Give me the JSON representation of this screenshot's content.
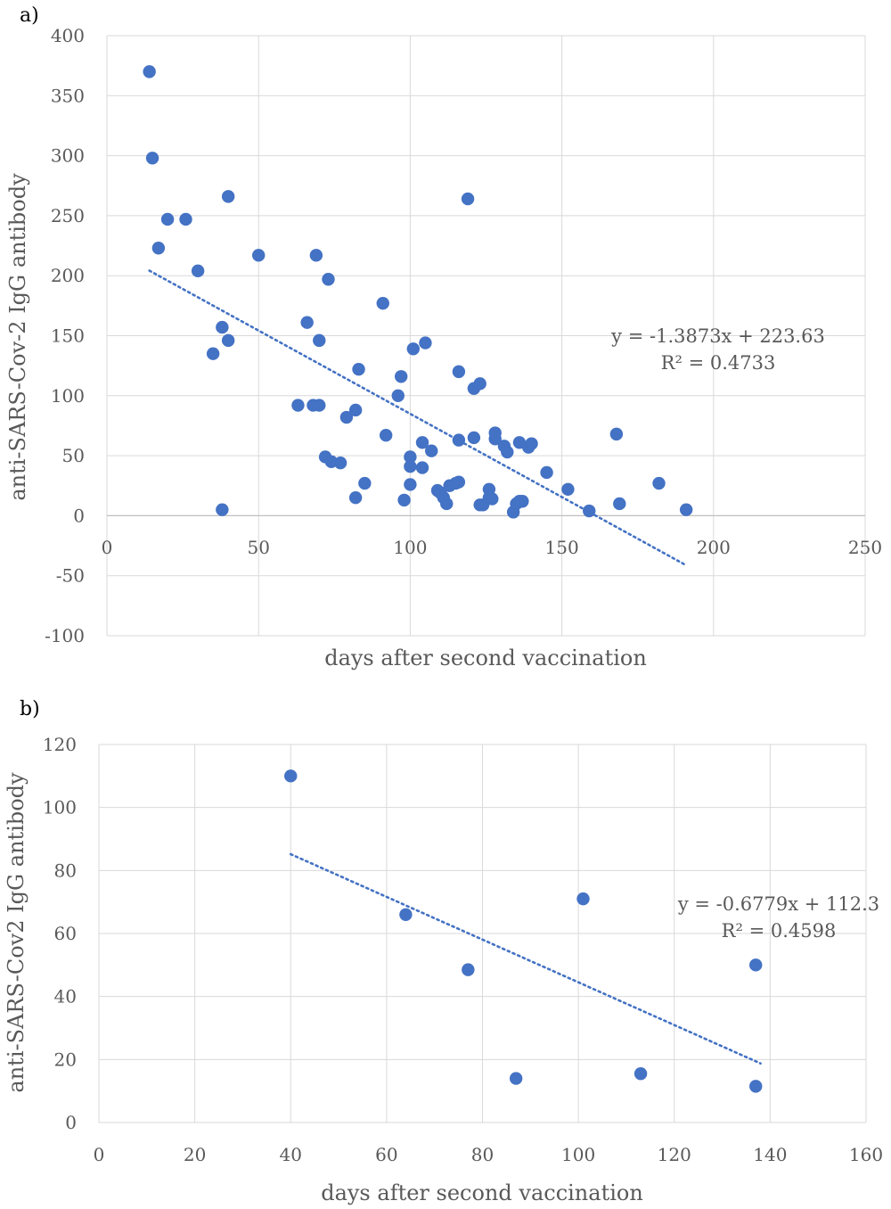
{
  "colors": {
    "marker": "#4472c4",
    "trend": "#4472c4",
    "grid": "#d9d9d9",
    "text": "#595959"
  },
  "chart_data": [
    {
      "type": "scatter",
      "panel_label": "a)",
      "title": "",
      "xlabel": "days after second vaccination",
      "ylabel": "anti-SARS-Cov-2 IgG antibody",
      "xlim": [
        0,
        250
      ],
      "ylim": [
        -100,
        400
      ],
      "xticks": [
        0,
        50,
        100,
        150,
        200,
        250
      ],
      "yticks": [
        -100,
        -50,
        0,
        50,
        100,
        150,
        200,
        250,
        300,
        350,
        400
      ],
      "series": [
        {
          "name": "IgG",
          "x": [
            14,
            15,
            17,
            20,
            26,
            30,
            35,
            38,
            38,
            40,
            40,
            50,
            63,
            66,
            68,
            69,
            70,
            70,
            72,
            73,
            74,
            77,
            79,
            82,
            82,
            83,
            85,
            91,
            92,
            96,
            97,
            98,
            100,
            100,
            100,
            101,
            104,
            104,
            105,
            107,
            109,
            110,
            111,
            112,
            113,
            115,
            116,
            116,
            116,
            119,
            121,
            121,
            123,
            123,
            124,
            126,
            126,
            127,
            128,
            128,
            131,
            132,
            134,
            135,
            136,
            136,
            137,
            139,
            140,
            145,
            152,
            159,
            168,
            169,
            182,
            191
          ],
          "y": [
            370,
            298,
            223,
            247,
            247,
            204,
            135,
            157,
            5,
            146,
            266,
            217,
            92,
            161,
            92,
            217,
            92,
            146,
            49,
            197,
            45,
            44,
            82,
            88,
            15,
            122,
            27,
            177,
            67,
            100,
            116,
            13,
            49,
            41,
            26,
            139,
            61,
            40,
            144,
            54,
            21,
            19,
            15,
            10,
            25,
            27,
            28,
            63,
            120,
            264,
            106,
            65,
            110,
            9,
            9,
            15,
            22,
            14,
            64,
            69,
            58,
            53,
            3,
            10,
            12,
            61,
            12,
            57,
            60,
            36,
            22,
            4,
            68,
            10,
            27,
            5
          ]
        }
      ],
      "trendline": {
        "slope": -1.3873,
        "intercept": 223.63,
        "x_range": [
          14,
          191
        ]
      },
      "annotation": {
        "equation": "y = -1.3873x + 223.63",
        "r2": "R² = 0.4733"
      }
    },
    {
      "type": "scatter",
      "panel_label": "b)",
      "title": "",
      "xlabel": "days after second vaccination",
      "ylabel": "anti-SARS-Cov2 IgG antibody",
      "xlim": [
        0,
        160
      ],
      "ylim": [
        0,
        120
      ],
      "xticks": [
        0,
        20,
        40,
        60,
        80,
        100,
        120,
        140,
        160
      ],
      "yticks": [
        0,
        20,
        40,
        60,
        80,
        100,
        120
      ],
      "series": [
        {
          "name": "IgG",
          "x": [
            40,
            64,
            77,
            87,
            101,
            113,
            137,
            137
          ],
          "y": [
            110,
            66,
            48.5,
            14,
            71,
            15.5,
            50,
            11.5
          ]
        }
      ],
      "trendline": {
        "slope": -0.6779,
        "intercept": 112.3,
        "x_range": [
          40,
          138
        ]
      },
      "annotation": {
        "equation": "y = -0.6779x + 112.3",
        "r2": "R² = 0.4598"
      }
    }
  ]
}
